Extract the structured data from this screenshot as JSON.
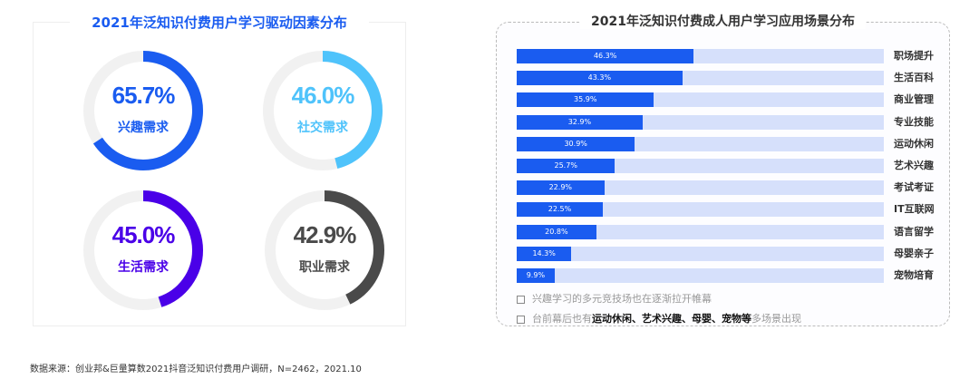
{
  "chart_data": [
    {
      "type": "pie",
      "title": "2021年泛知识付费用户学习驱动因素分布",
      "series": [
        {
          "name": "兴趣需求",
          "value": 65.7,
          "label": "65.7%",
          "color": "#1a5cf0"
        },
        {
          "name": "社交需求",
          "value": 46.0,
          "label": "46.0%",
          "color": "#4fc3fb"
        },
        {
          "name": "生活需求",
          "value": 45.0,
          "label": "45.0%",
          "color": "#4a00e8"
        },
        {
          "name": "职业需求",
          "value": 42.9,
          "label": "42.9%",
          "color": "#4a4a4a"
        }
      ],
      "track_color": "#f1f1f1"
    },
    {
      "type": "bar",
      "orientation": "horizontal",
      "title": "2021年泛知识付费成人用户学习应用场景分布",
      "categories": [
        "职场提升",
        "生活百科",
        "商业管理",
        "专业技能",
        "运动休闲",
        "艺术兴趣",
        "考试考证",
        "IT互联网",
        "语言留学",
        "母婴亲子",
        "宠物培育"
      ],
      "values": [
        46.3,
        43.3,
        35.9,
        32.9,
        30.9,
        25.7,
        22.9,
        22.5,
        20.8,
        14.3,
        9.9
      ],
      "labels": [
        "46.3%",
        "43.3%",
        "35.9%",
        "32.9%",
        "30.9%",
        "25.7%",
        "22.9%",
        "22.5%",
        "20.8%",
        "14.3%",
        "9.9%"
      ],
      "xlim": [
        0,
        96
      ],
      "bar_color": "#1a5cf0",
      "track_color": "#d6e0fb"
    }
  ],
  "notes": [
    {
      "text": "兴趣学习的多元竞技场也在逐渐拉开帷幕"
    },
    {
      "pre": "台前幕后也有",
      "bold": "运动休闲、艺术兴趣、母婴、宠物等",
      "post": "多场景出现"
    }
  ],
  "footer": "数据来源：创业邦&巨量算数2021抖音泛知识付费用户调研，N=2462，2021.10"
}
